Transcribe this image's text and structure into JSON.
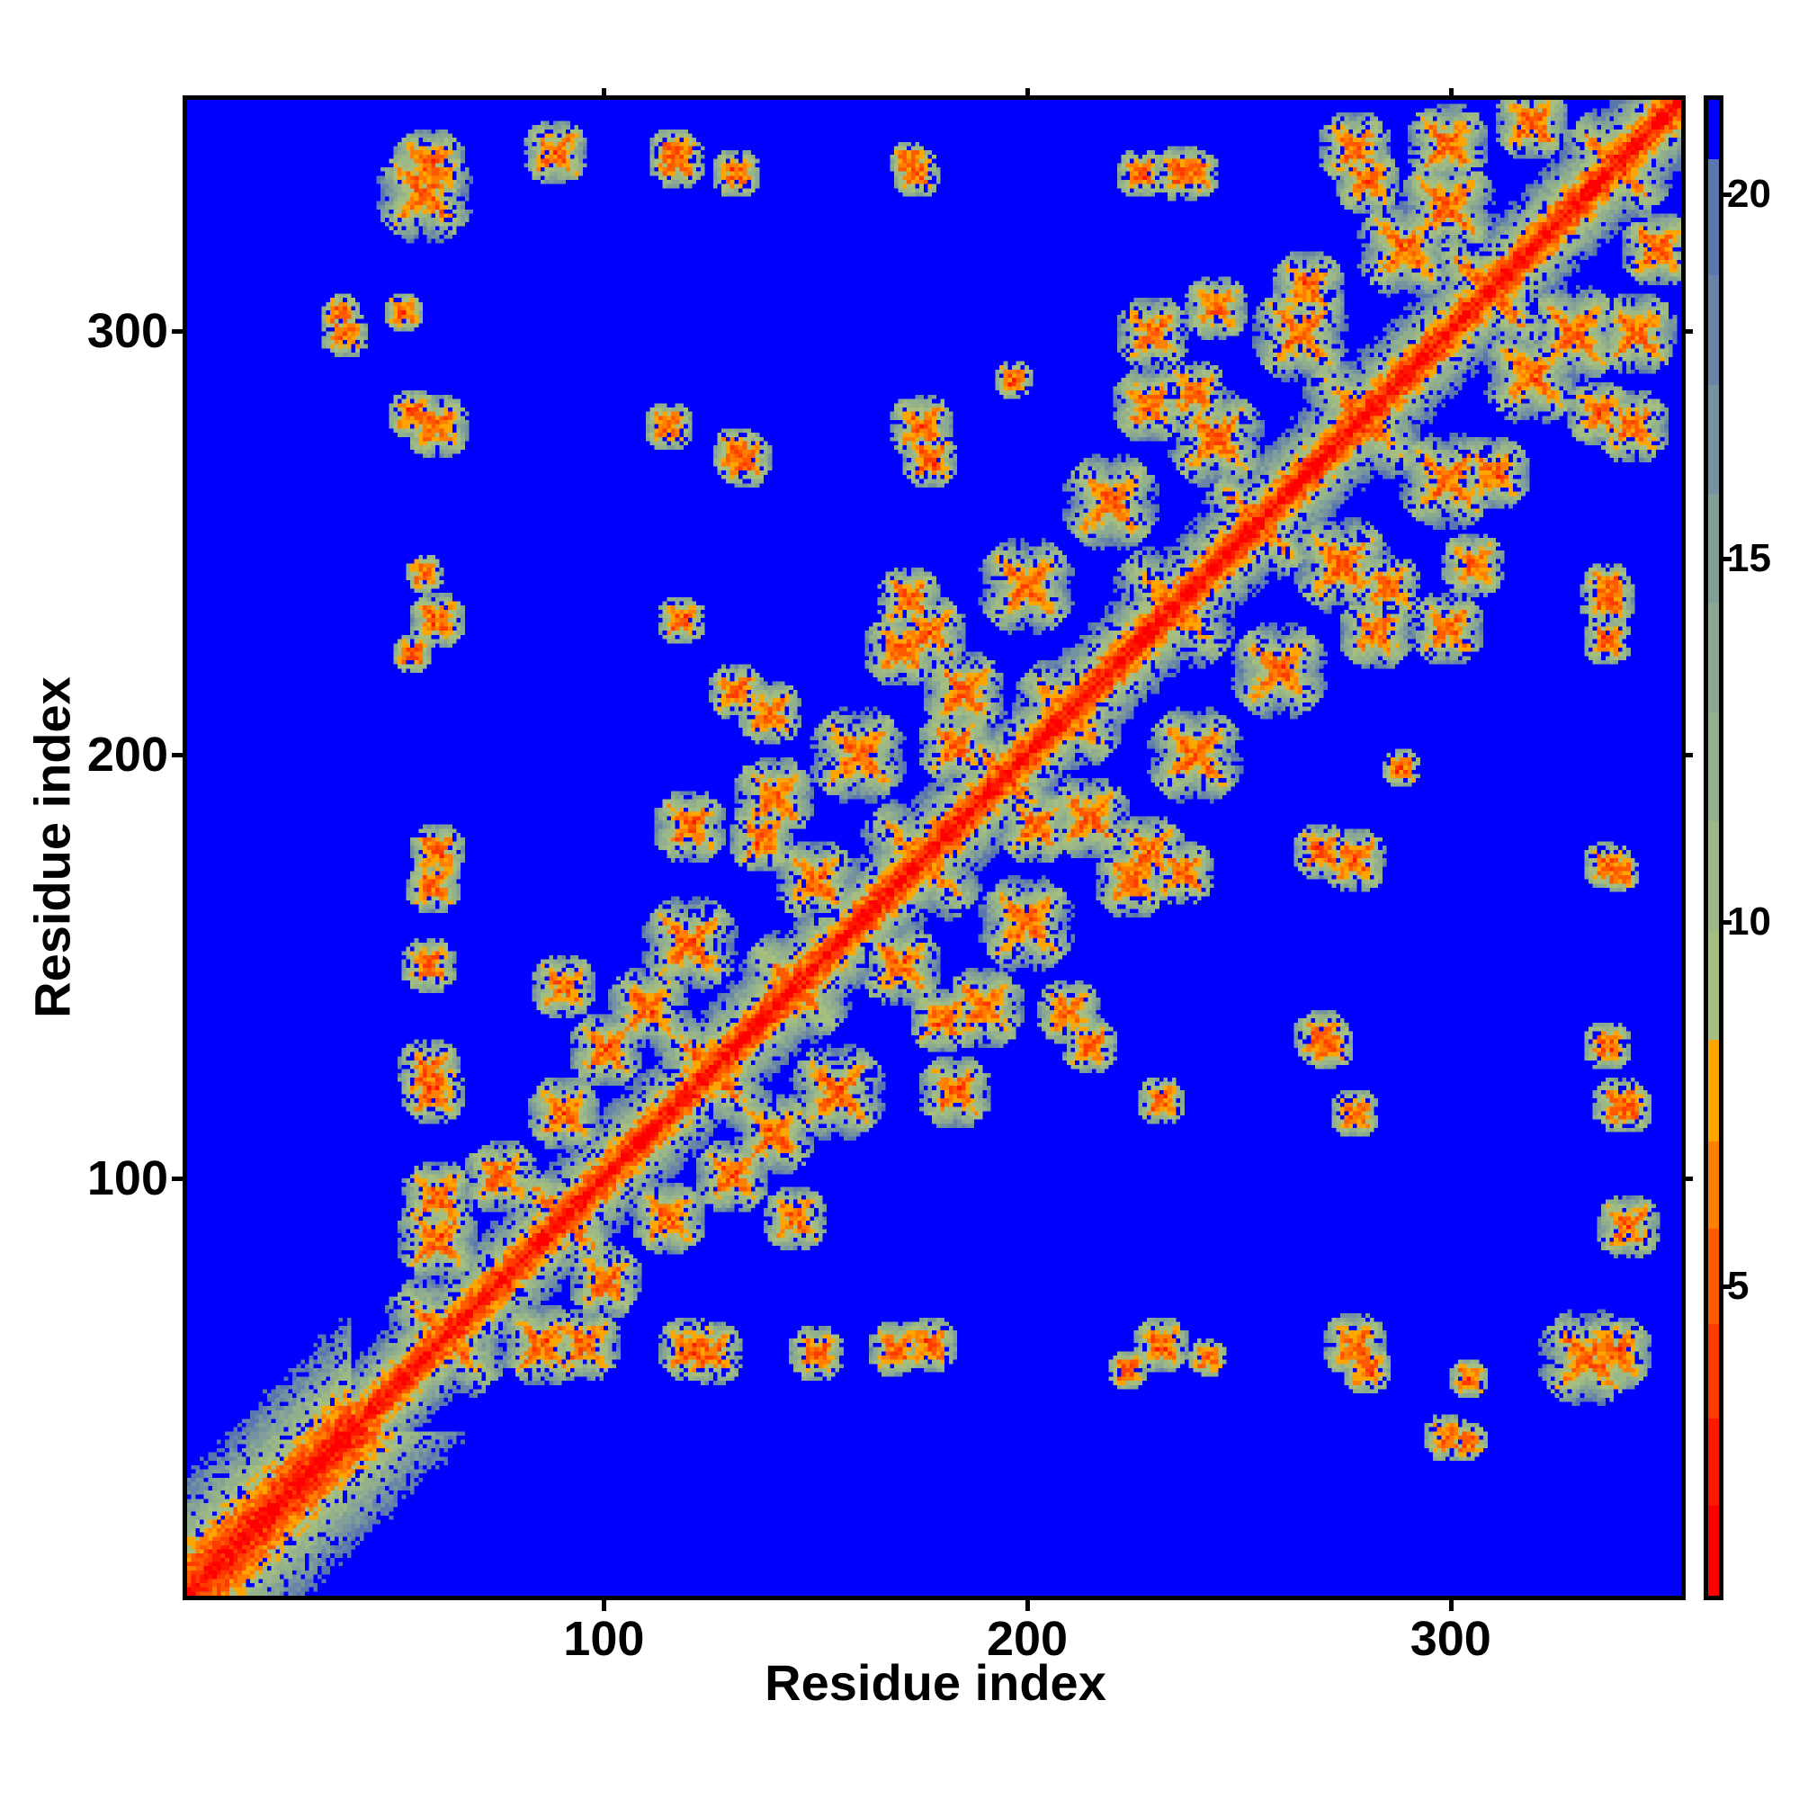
{
  "chart_data": {
    "type": "heatmap",
    "title": "",
    "xlabel": "Residue index",
    "ylabel": "Residue index",
    "n_residues": 355,
    "xlim": [
      0.5,
      355.5
    ],
    "ylim": [
      0.5,
      355.5
    ],
    "xticks": [
      100,
      200,
      300
    ],
    "yticks": [
      100,
      200,
      300
    ],
    "colorbar": {
      "range": [
        0.75,
        21.3
      ],
      "ticks": [
        5,
        10,
        15,
        20
      ],
      "cutoff_color": "#0000ff",
      "cutoff_value": 20.5,
      "bins": [
        {
          "max": 2.0,
          "color": "#ff0000"
        },
        {
          "max": 3.2,
          "color": "#ff1800"
        },
        {
          "max": 4.5,
          "color": "#ff3c00"
        },
        {
          "max": 5.8,
          "color": "#ff5a00"
        },
        {
          "max": 7.0,
          "color": "#ff7f00"
        },
        {
          "max": 8.4,
          "color": "#ffa500"
        },
        {
          "max": 9.9,
          "color": "#a6bf80"
        },
        {
          "max": 11.4,
          "color": "#9cb886"
        },
        {
          "max": 12.9,
          "color": "#93b08c"
        },
        {
          "max": 14.4,
          "color": "#8aa892"
        },
        {
          "max": 15.9,
          "color": "#809f98"
        },
        {
          "max": 17.4,
          "color": "#74929f"
        },
        {
          "max": 18.9,
          "color": "#6884a7"
        },
        {
          "max": 20.5,
          "color": "#5a76ae"
        },
        {
          "max": 99,
          "color": "#0000ff"
        }
      ]
    },
    "symmetric": true,
    "diagonal_crosses": [
      [
        62,
        62,
        16
      ],
      [
        90,
        90,
        14
      ],
      [
        125,
        125,
        16
      ],
      [
        145,
        145,
        14
      ],
      [
        175,
        175,
        16
      ],
      [
        195,
        195,
        12
      ],
      [
        210,
        210,
        14
      ],
      [
        235,
        235,
        16
      ],
      [
        255,
        255,
        14
      ],
      [
        280,
        280,
        16
      ],
      [
        310,
        310,
        16
      ],
      [
        340,
        340,
        14
      ]
    ],
    "contact_blobs": [
      [
        58,
        340,
        9
      ],
      [
        88,
        343,
        8
      ],
      [
        116,
        343,
        6
      ],
      [
        131,
        338,
        6
      ],
      [
        172,
        341,
        5
      ],
      [
        227,
        338,
        6
      ],
      [
        240,
        338,
        6
      ],
      [
        278,
        344,
        9
      ],
      [
        300,
        330,
        12
      ],
      [
        37,
        305,
        5
      ],
      [
        52,
        305,
        5
      ],
      [
        60,
        278,
        8
      ],
      [
        115,
        278,
        6
      ],
      [
        131,
        272,
        6
      ],
      [
        175,
        278,
        8
      ],
      [
        197,
        289,
        5
      ],
      [
        229,
        283,
        9
      ],
      [
        240,
        286,
        8
      ],
      [
        278,
        281,
        6
      ],
      [
        311,
        267,
        9
      ],
      [
        336,
        281,
        8
      ],
      [
        60,
        232,
        7
      ],
      [
        118,
        232,
        6
      ],
      [
        131,
        215,
        7
      ],
      [
        172,
        237,
        8
      ],
      [
        306,
        245,
        8
      ],
      [
        338,
        237,
        7
      ],
      [
        60,
        177,
        7
      ],
      [
        120,
        183,
        9
      ],
      [
        137,
        180,
        8
      ],
      [
        202,
        183,
        9
      ],
      [
        229,
        177,
        9
      ],
      [
        270,
        177,
        7
      ],
      [
        338,
        174,
        6
      ],
      [
        58,
        150,
        7
      ],
      [
        58,
        125,
        8
      ],
      [
        210,
        139,
        8
      ],
      [
        270,
        133,
        7
      ],
      [
        341,
        117,
        7
      ],
      [
        115,
        90,
        9
      ],
      [
        145,
        90,
        8
      ],
      [
        54,
        281,
        6
      ],
      [
        57,
        333,
        12
      ],
      [
        54,
        224,
        5
      ],
      [
        38,
        300,
        6
      ],
      [
        59,
        120,
        8
      ],
      [
        59,
        169,
        7
      ],
      [
        57,
        243,
        5
      ],
      [
        60,
        85,
        10
      ],
      [
        75,
        100,
        9
      ],
      [
        95,
        60,
        9
      ],
      [
        110,
        140,
        10
      ],
      [
        120,
        155,
        12
      ],
      [
        150,
        170,
        10
      ],
      [
        160,
        200,
        12
      ],
      [
        185,
        215,
        10
      ],
      [
        200,
        240,
        12
      ],
      [
        220,
        260,
        12
      ],
      [
        245,
        275,
        12
      ],
      [
        265,
        300,
        12
      ],
      [
        290,
        320,
        12
      ],
      [
        300,
        345,
        10
      ],
      [
        320,
        350,
        9
      ],
      [
        100,
        130,
        9
      ],
      [
        140,
        190,
        10
      ],
      [
        170,
        225,
        9
      ],
      [
        230,
        300,
        9
      ]
    ]
  }
}
